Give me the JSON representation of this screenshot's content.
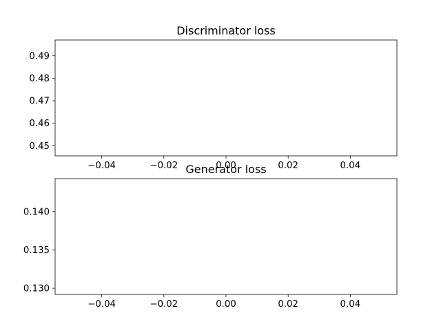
{
  "chart_data": [
    {
      "type": "line",
      "title": "Discriminator loss",
      "xlabel": "",
      "ylabel": "",
      "xlim": [
        -0.055,
        0.055
      ],
      "ylim": [
        0.4455,
        0.497
      ],
      "xticks": [
        -0.04,
        -0.02,
        0.0,
        0.02,
        0.04
      ],
      "xtick_labels": [
        "−0.04",
        "−0.02",
        "0.00",
        "0.02",
        "0.04"
      ],
      "yticks": [
        0.45,
        0.46,
        0.47,
        0.48,
        0.49
      ],
      "ytick_labels": [
        "0.45",
        "0.46",
        "0.47",
        "0.48",
        "0.49"
      ],
      "series": [
        {
          "x": [],
          "y": []
        }
      ],
      "grid": false,
      "legend": "none"
    },
    {
      "type": "line",
      "title": "Generator loss",
      "xlabel": "",
      "ylabel": "",
      "xlim": [
        -0.055,
        0.055
      ],
      "ylim": [
        0.1292,
        0.1443
      ],
      "xticks": [
        -0.04,
        -0.02,
        0.0,
        0.02,
        0.04
      ],
      "xtick_labels": [
        "−0.04",
        "−0.02",
        "0.00",
        "0.02",
        "0.04"
      ],
      "yticks": [
        0.13,
        0.135,
        0.14
      ],
      "ytick_labels": [
        "0.130",
        "0.135",
        "0.140"
      ],
      "series": [
        {
          "x": [],
          "y": []
        }
      ],
      "grid": false,
      "legend": "none"
    }
  ],
  "colors": {
    "axes": "#000000",
    "background": "#ffffff"
  }
}
